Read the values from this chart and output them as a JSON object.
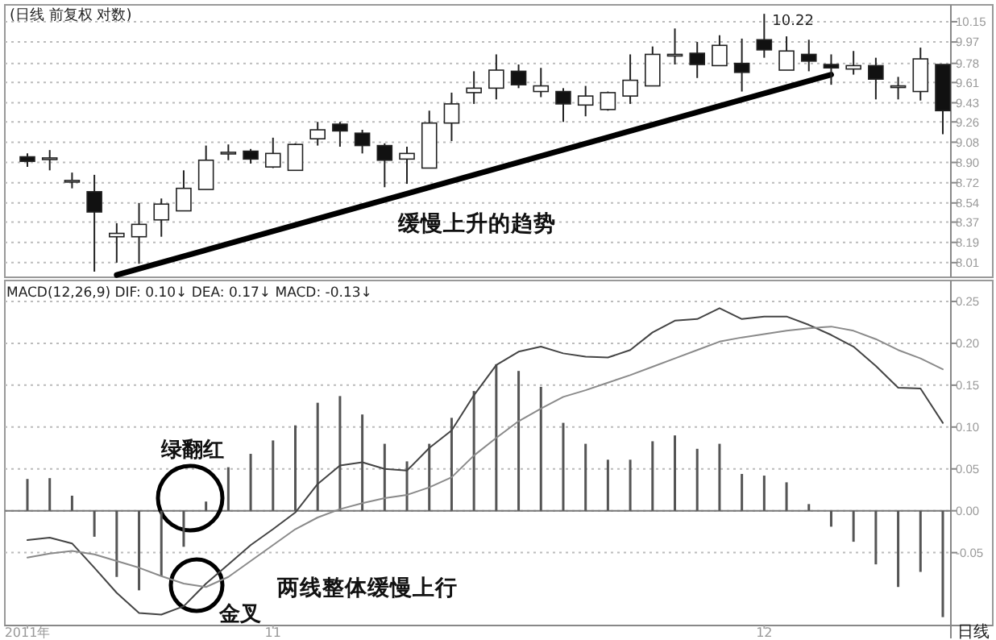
{
  "chart_data": [
    {
      "type": "candlestick",
      "title": "(日线 前复权 对数)",
      "ohlc": [
        [
          8.95,
          8.98,
          8.86,
          8.91
        ],
        [
          8.93,
          9.01,
          8.83,
          8.94
        ],
        [
          8.74,
          8.81,
          8.67,
          8.74
        ],
        [
          8.64,
          8.79,
          7.93,
          8.46
        ],
        [
          8.24,
          8.36,
          8.01,
          8.27
        ],
        [
          8.24,
          8.54,
          8.0,
          8.35
        ],
        [
          8.39,
          8.58,
          8.24,
          8.53
        ],
        [
          8.47,
          8.83,
          8.47,
          8.67
        ],
        [
          8.66,
          9.05,
          8.66,
          8.92
        ],
        [
          8.98,
          9.06,
          8.92,
          8.99
        ],
        [
          9.0,
          9.02,
          8.89,
          8.93
        ],
        [
          8.86,
          9.12,
          8.85,
          8.98
        ],
        [
          8.83,
          9.07,
          8.83,
          9.06
        ],
        [
          9.11,
          9.26,
          9.05,
          9.19
        ],
        [
          9.24,
          9.26,
          9.04,
          9.18
        ],
        [
          9.16,
          9.19,
          8.98,
          9.05
        ],
        [
          9.05,
          9.07,
          8.68,
          8.92
        ],
        [
          8.93,
          9.04,
          8.71,
          8.98
        ],
        [
          8.85,
          9.36,
          8.85,
          9.25
        ],
        [
          9.25,
          9.52,
          9.09,
          9.42
        ],
        [
          9.52,
          9.71,
          9.42,
          9.56
        ],
        [
          9.56,
          9.86,
          9.46,
          9.72
        ],
        [
          9.71,
          9.77,
          9.56,
          9.59
        ],
        [
          9.53,
          9.74,
          9.48,
          9.58
        ],
        [
          9.53,
          9.56,
          9.26,
          9.42
        ],
        [
          9.41,
          9.58,
          9.31,
          9.49
        ],
        [
          9.37,
          9.53,
          9.36,
          9.52
        ],
        [
          9.49,
          9.86,
          9.42,
          9.63
        ],
        [
          9.58,
          9.93,
          9.58,
          9.86
        ],
        [
          9.85,
          10.09,
          9.77,
          9.86
        ],
        [
          9.87,
          9.97,
          9.65,
          9.77
        ],
        [
          9.76,
          10.03,
          9.76,
          9.94
        ],
        [
          9.78,
          10.0,
          9.53,
          9.7
        ],
        [
          9.99,
          10.22,
          9.83,
          9.9
        ],
        [
          9.72,
          10.02,
          9.72,
          9.89
        ],
        [
          9.86,
          9.99,
          9.71,
          9.8
        ],
        [
          9.77,
          9.86,
          9.59,
          9.74
        ],
        [
          9.73,
          9.89,
          9.68,
          9.76
        ],
        [
          9.76,
          9.83,
          9.46,
          9.64
        ],
        [
          9.57,
          9.66,
          9.46,
          9.58
        ],
        [
          9.53,
          9.92,
          9.45,
          9.82
        ],
        [
          9.77,
          9.77,
          9.15,
          9.36
        ]
      ],
      "series": [
        {
          "type": "line",
          "color": "#000000",
          "values": [
            null,
            null,
            null,
            null,
            7.9,
            null,
            null,
            null,
            null,
            null,
            null,
            null,
            null,
            null,
            null,
            null,
            null,
            null,
            null,
            null,
            null,
            null,
            null,
            null,
            null,
            null,
            null,
            null,
            null,
            null,
            null,
            null,
            null,
            null,
            null,
            null,
            9.68,
            null,
            null,
            null,
            null,
            null
          ]
        }
      ],
      "ylim": [
        7.88,
        10.3
      ],
      "yticks": [
        10.15,
        9.97,
        9.78,
        9.61,
        9.43,
        9.26,
        9.08,
        {
          "value": 8.9,
          "label": "8.90"
        },
        8.72,
        8.54,
        8.37,
        8.19,
        8.01
      ],
      "grid": "y",
      "tick_labels": "y",
      "annotations": [
        "10.22",
        "缓慢上升的趋势"
      ]
    },
    {
      "type": "bar",
      "subtitle": "MACD(12,26,9) DIF: 0.10↓ DEA: 0.17↓ MACD: -0.13↓",
      "categories": [
        "2011年",
        null,
        null,
        null,
        null,
        null,
        null,
        null,
        null,
        null,
        null,
        "11",
        null,
        null,
        null,
        null,
        null,
        null,
        null,
        null,
        null,
        null,
        null,
        null,
        null,
        null,
        null,
        null,
        null,
        null,
        null,
        null,
        null,
        "12",
        null,
        null,
        null,
        null,
        null,
        null,
        null,
        null
      ],
      "series": [
        {
          "type": "bar",
          "color": "#555555",
          "values": [
            0.038,
            0.039,
            0.018,
            -0.031,
            -0.079,
            -0.095,
            -0.078,
            -0.043,
            0.011,
            0.052,
            0.068,
            0.084,
            0.102,
            0.129,
            0.137,
            0.115,
            0.08,
            0.059,
            0.08,
            0.111,
            0.143,
            0.175,
            0.167,
            0.148,
            0.105,
            0.08,
            0.061,
            0.061,
            0.083,
            0.09,
            0.074,
            0.08,
            0.044,
            0.042,
            0.034,
            0.008,
            -0.019,
            -0.037,
            -0.064,
            -0.091,
            -0.073,
            -0.127
          ]
        },
        {
          "type": "line",
          "color": "#444444",
          "values": [
            -0.035,
            -0.032,
            -0.039,
            -0.068,
            -0.098,
            -0.122,
            -0.124,
            -0.114,
            -0.087,
            -0.064,
            -0.041,
            -0.022,
            -0.002,
            0.032,
            0.054,
            0.058,
            0.05,
            0.048,
            0.075,
            0.096,
            0.138,
            0.174,
            0.19,
            0.196,
            0.188,
            0.184,
            0.183,
            0.192,
            0.213,
            0.227,
            0.229,
            0.242,
            0.229,
            0.232,
            0.232,
            0.222,
            0.21,
            0.196,
            0.173,
            0.147,
            0.146,
            0.105
          ]
        },
        {
          "type": "line",
          "color": "#8a8a8a",
          "values": [
            -0.056,
            -0.051,
            -0.048,
            -0.052,
            -0.06,
            -0.068,
            -0.078,
            -0.087,
            -0.091,
            -0.079,
            -0.06,
            -0.041,
            -0.022,
            -0.008,
            0.002,
            0.009,
            0.015,
            0.019,
            0.028,
            0.04,
            0.066,
            0.087,
            0.107,
            0.122,
            0.136,
            0.144,
            0.153,
            0.162,
            0.172,
            0.182,
            0.192,
            0.202,
            0.207,
            0.211,
            0.215,
            0.218,
            0.22,
            0.215,
            0.205,
            0.192,
            0.182,
            0.169
          ]
        }
      ],
      "ylim": [
        -0.137,
        0.275
      ],
      "yticks": [
        {
          "value": 0.25,
          "label": "0.25"
        },
        {
          "value": 0.2,
          "label": "0.20"
        },
        {
          "value": 0.15,
          "label": "0.15"
        },
        {
          "value": 0.1,
          "label": "0.10"
        },
        {
          "value": 0.05,
          "label": "0.05"
        },
        {
          "value": 0,
          "label": "0.00"
        },
        {
          "value": -0.05,
          "label": "-0.05"
        }
      ],
      "grid": "y",
      "annotations": [
        "绿翻红",
        "金叉",
        "两线整体缓慢上行",
        "日线"
      ]
    }
  ]
}
